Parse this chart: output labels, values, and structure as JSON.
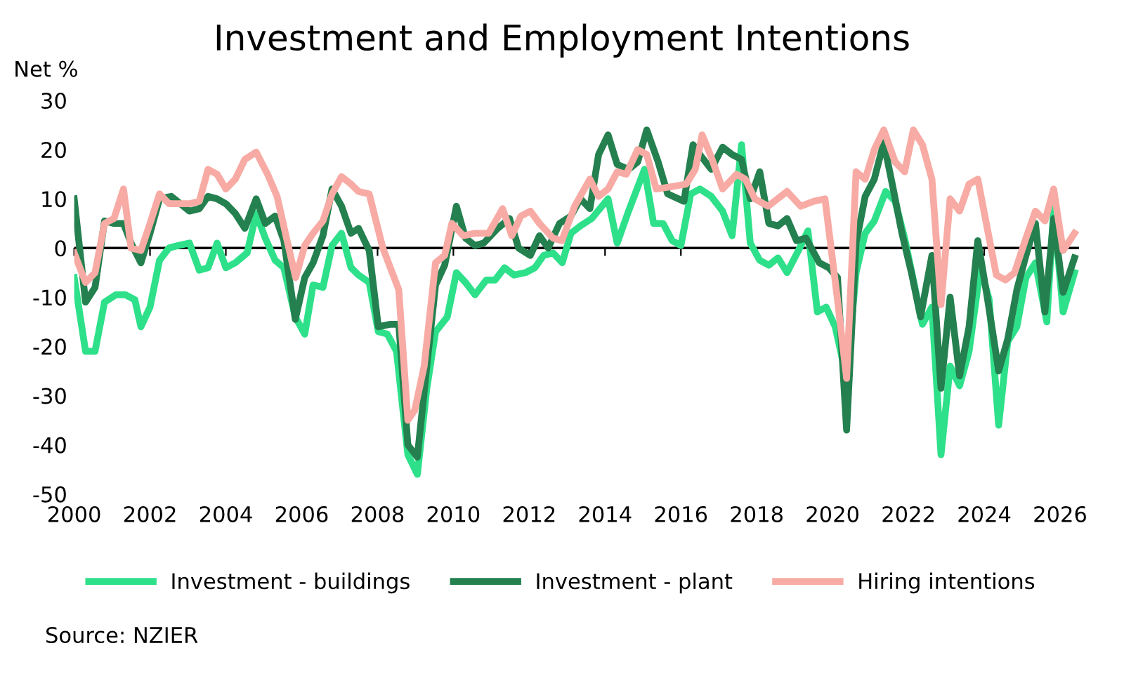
{
  "chart_data": {
    "type": "line",
    "title": "Investment and Employment Intentions",
    "ylabel": "Net %",
    "annotations": [
      "Source: NZIER"
    ],
    "xlim": [
      2000,
      2026.5
    ],
    "xticks": [
      2000,
      2002,
      2004,
      2006,
      2008,
      2010,
      2012,
      2014,
      2016,
      2018,
      2020,
      2022,
      2024,
      2026
    ],
    "ylim": [
      -50,
      30
    ],
    "yticks": [
      -50,
      -40,
      -30,
      -20,
      -10,
      0,
      10,
      20,
      30
    ],
    "ref_lines": [
      {
        "axis": "y",
        "value": 0,
        "color": "#000000"
      }
    ],
    "grid": false,
    "legend": "bottom",
    "marker": "none",
    "line_style": "solid",
    "series": [
      {
        "name": "Investment - buildings",
        "color": "#2ee08a",
        "x": [
          2000.0,
          2000.3,
          2000.55,
          2000.8,
          2001.1,
          2001.35,
          2001.6,
          2001.76,
          2002.0,
          2002.25,
          2002.5,
          2002.74,
          2003.04,
          2003.3,
          2003.53,
          2003.77,
          2004.0,
          2004.25,
          2004.56,
          2004.8,
          2005.04,
          2005.3,
          2005.53,
          2005.83,
          2006.08,
          2006.3,
          2006.56,
          2006.8,
          2007.05,
          2007.3,
          2007.5,
          2007.78,
          2008.02,
          2008.26,
          2008.5,
          2008.8,
          2009.05,
          2009.3,
          2009.53,
          2009.84,
          2010.08,
          2010.32,
          2010.57,
          2010.87,
          2011.1,
          2011.35,
          2011.6,
          2011.9,
          2012.15,
          2012.38,
          2012.63,
          2012.87,
          2013.1,
          2013.35,
          2013.65,
          2014.08,
          2014.32,
          2014.62,
          2015.04,
          2015.28,
          2015.53,
          2015.77,
          2016.0,
          2016.26,
          2016.5,
          2016.8,
          2017.1,
          2017.35,
          2017.6,
          2017.83,
          2018.08,
          2018.32,
          2018.56,
          2018.8,
          2019.1,
          2019.35,
          2019.6,
          2019.83,
          2020.07,
          2020.37,
          2020.62,
          2020.86,
          2021.1,
          2021.4,
          2021.65,
          2021.9,
          2022.13,
          2022.37,
          2022.62,
          2022.86,
          2023.1,
          2023.35,
          2023.6,
          2023.9,
          2024.13,
          2024.38,
          2024.62,
          2024.86,
          2025.1,
          2025.35,
          2025.65,
          2025.83,
          2026.08,
          2026.38
        ],
        "values": [
          -6,
          -21,
          -21,
          -11,
          -9.5,
          -9.5,
          -10.5,
          -16,
          -12,
          -2.5,
          0,
          0.5,
          1,
          -4.5,
          -4,
          1,
          -4,
          -3,
          -1,
          7,
          2,
          -2.5,
          -4,
          -14,
          -17.5,
          -7.5,
          -8,
          0.5,
          3,
          -4,
          -5.5,
          -7,
          -17,
          -17.5,
          -21,
          -42,
          -46,
          -28.5,
          -17,
          -14,
          -5,
          -7,
          -9.5,
          -6.5,
          -6.5,
          -4,
          -5.5,
          -5,
          -4,
          -1.5,
          -1,
          -3,
          3,
          4.5,
          6,
          10,
          1,
          7.5,
          16,
          5,
          5,
          1.5,
          0.5,
          11,
          12,
          10.5,
          7.5,
          2.5,
          21,
          1,
          -2.5,
          -3.5,
          -2,
          -5,
          -0.5,
          3.5,
          -13,
          -12,
          -16,
          -26.5,
          -5,
          3,
          5.5,
          11.5,
          9.5,
          2,
          -6.5,
          -15.5,
          -12,
          -42,
          -24,
          -28,
          -21,
          -4,
          -10.5,
          -36,
          -19,
          -16,
          -6,
          -3,
          -15,
          8,
          -13,
          -5
        ]
      },
      {
        "name": "Investment - plant",
        "color": "#24804f",
        "x": [
          2000.0,
          2000.3,
          2000.55,
          2000.8,
          2001.05,
          2001.3,
          2001.5,
          2001.76,
          2002.0,
          2002.25,
          2002.56,
          2002.8,
          2003.04,
          2003.3,
          2003.53,
          2003.77,
          2004.0,
          2004.25,
          2004.5,
          2004.8,
          2005.04,
          2005.3,
          2005.53,
          2005.83,
          2006.08,
          2006.3,
          2006.56,
          2006.8,
          2007.05,
          2007.3,
          2007.5,
          2007.78,
          2008.02,
          2008.32,
          2008.56,
          2008.8,
          2009.05,
          2009.3,
          2009.53,
          2009.77,
          2010.08,
          2010.32,
          2010.57,
          2010.8,
          2011.17,
          2011.48,
          2011.72,
          2012.03,
          2012.27,
          2012.5,
          2012.8,
          2013.1,
          2013.35,
          2013.6,
          2013.83,
          2014.08,
          2014.32,
          2014.62,
          2014.86,
          2015.1,
          2015.4,
          2015.65,
          2016.08,
          2016.32,
          2016.5,
          2016.8,
          2017.1,
          2017.35,
          2017.6,
          2017.83,
          2018.08,
          2018.32,
          2018.56,
          2018.8,
          2019.05,
          2019.3,
          2019.65,
          2019.9,
          2020.13,
          2020.37,
          2020.62,
          2020.86,
          2021.1,
          2021.35,
          2021.6,
          2021.83,
          2022.08,
          2022.32,
          2022.62,
          2022.86,
          2023.1,
          2023.35,
          2023.6,
          2023.83,
          2024.08,
          2024.38,
          2024.62,
          2024.86,
          2025.1,
          2025.35,
          2025.6,
          2025.83,
          2026.08,
          2026.38
        ],
        "values": [
          10,
          -11,
          -8,
          5.5,
          5,
          5,
          1,
          -3,
          3,
          10,
          10.5,
          9,
          7.5,
          8,
          10.5,
          10,
          9,
          7,
          4,
          10,
          5,
          6.5,
          1.5,
          -14.5,
          -6,
          -3,
          2.5,
          12,
          8.5,
          3,
          4,
          -0.5,
          -16,
          -15.5,
          -15.5,
          -40,
          -42.5,
          -24,
          -7.5,
          -3.5,
          8.5,
          2,
          0.5,
          1,
          4,
          6,
          0,
          -1.5,
          2.5,
          0,
          5,
          6.5,
          10,
          8,
          19,
          23,
          17,
          16,
          17.5,
          24,
          17.5,
          11,
          9.5,
          21,
          19,
          16,
          20.5,
          19,
          18,
          10,
          15.5,
          5,
          4.5,
          6,
          1.5,
          2,
          -3,
          -4,
          -6,
          -37,
          1,
          10.5,
          14,
          21.5,
          12,
          3,
          -5,
          -14,
          -1.5,
          -28.5,
          -10,
          -26,
          -16,
          1.5,
          -10,
          -25,
          -18.5,
          -8.5,
          -1.5,
          5,
          -13,
          6,
          -9,
          -2
        ]
      },
      {
        "name": "Hiring intentions",
        "color": "#f7aba4",
        "x": [
          2000.0,
          2000.3,
          2000.55,
          2000.8,
          2001.05,
          2001.3,
          2001.5,
          2001.76,
          2002.0,
          2002.25,
          2002.5,
          2002.74,
          2003.04,
          2003.3,
          2003.53,
          2003.77,
          2004.0,
          2004.25,
          2004.5,
          2004.8,
          2005.1,
          2005.35,
          2005.6,
          2005.84,
          2006.08,
          2006.3,
          2006.56,
          2006.8,
          2007.05,
          2007.3,
          2007.5,
          2007.78,
          2008.14,
          2008.56,
          2008.8,
          2008.98,
          2009.23,
          2009.53,
          2009.77,
          2009.96,
          2010.26,
          2010.57,
          2010.93,
          2011.3,
          2011.54,
          2011.78,
          2012.03,
          2012.27,
          2012.63,
          2012.86,
          2013.2,
          2013.6,
          2013.83,
          2014.08,
          2014.32,
          2014.56,
          2014.86,
          2015.1,
          2015.35,
          2015.77,
          2016.14,
          2016.38,
          2016.56,
          2016.8,
          2017.1,
          2017.47,
          2017.7,
          2017.95,
          2018.3,
          2018.8,
          2019.16,
          2019.5,
          2019.8,
          2020.13,
          2020.37,
          2020.62,
          2020.86,
          2021.1,
          2021.35,
          2021.65,
          2021.9,
          2022.13,
          2022.37,
          2022.62,
          2022.86,
          2023.1,
          2023.35,
          2023.6,
          2023.83,
          2024.08,
          2024.32,
          2024.56,
          2024.8,
          2025.1,
          2025.35,
          2025.6,
          2025.83,
          2026.08,
          2026.38
        ],
        "values": [
          -1,
          -7,
          -5,
          5,
          6,
          12,
          0,
          -0.5,
          5,
          11,
          9,
          9,
          9,
          9.5,
          16,
          15,
          12,
          14,
          18,
          19.5,
          15,
          10.5,
          2,
          -6,
          0.5,
          3,
          5.5,
          11,
          14.5,
          13,
          11.5,
          11,
          0,
          -8.5,
          -35,
          -33,
          -24,
          -3,
          -1.5,
          5,
          2.5,
          3,
          3,
          8,
          2.5,
          6.5,
          7.5,
          5,
          2,
          1.5,
          8.5,
          14,
          10.5,
          12,
          15.5,
          15,
          20,
          19,
          12,
          12.5,
          13,
          16,
          23,
          18.5,
          12,
          15,
          14,
          10,
          8.5,
          11.5,
          8.5,
          9.5,
          10,
          -10.5,
          -26.5,
          15.5,
          14,
          20,
          24,
          17.5,
          15.5,
          24,
          21,
          14,
          -11.5,
          10,
          7.5,
          13,
          14,
          4,
          -5.5,
          -6.5,
          -5,
          2,
          7.5,
          5.5,
          12,
          -0.5,
          3
        ]
      }
    ]
  }
}
